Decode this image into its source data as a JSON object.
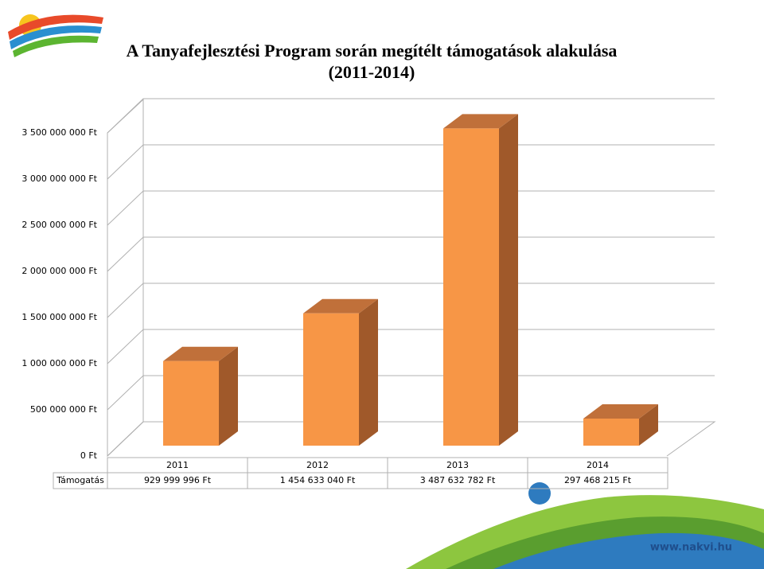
{
  "chart_data": {
    "type": "bar3d",
    "title": "A Tanyafejlesztési Program során megítélt támogatások alakulása",
    "subtitle": "(2011-2014)",
    "categories": [
      "2011",
      "2012",
      "2013",
      "2014"
    ],
    "series": [
      {
        "name": "Támogatás",
        "color": "#f79646",
        "values": [
          929999996,
          1454633040,
          3487632782,
          297468215
        ],
        "value_labels": [
          "929 999 996 Ft",
          "1 454 633 040 Ft",
          "3 487 632 782 Ft",
          "297 468 215 Ft"
        ]
      }
    ],
    "ylim": [
      0,
      3500000000
    ],
    "yticks": [
      {
        "value": 0,
        "label": "0 Ft"
      },
      {
        "value": 500000000,
        "label": "500 000 000 Ft"
      },
      {
        "value": 1000000000,
        "label": "1 000 000 000 Ft"
      },
      {
        "value": 1500000000,
        "label": "1 500 000 000 Ft"
      },
      {
        "value": 2000000000,
        "label": "2 000 000 000 Ft"
      },
      {
        "value": 2500000000,
        "label": "2 500 000 000 Ft"
      },
      {
        "value": 3000000000,
        "label": "3 000 000 000 Ft"
      },
      {
        "value": 3500000000,
        "label": "3 500 000 000 Ft"
      }
    ],
    "grid": true,
    "footer": "www.nakvi.hu"
  }
}
